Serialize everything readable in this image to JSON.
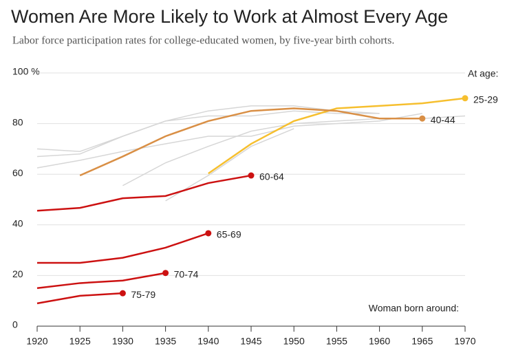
{
  "chart_data": {
    "type": "line",
    "title": "Women Are More Likely to Work at Almost Every Age",
    "subtitle": "Labor force participation rates for college-educated women, by five-year birth cohorts.",
    "annotations": [
      "At age:",
      "Woman born around:"
    ],
    "x": [
      1920,
      1925,
      1930,
      1935,
      1940,
      1945,
      1950,
      1955,
      1960,
      1965,
      1970
    ],
    "xlim": [
      1920,
      1970
    ],
    "xticks": [
      1920,
      1925,
      1930,
      1935,
      1940,
      1945,
      1950,
      1955,
      1960,
      1965,
      1970
    ],
    "ylim": [
      0,
      100
    ],
    "yticks": [
      0,
      20,
      40,
      60,
      80,
      {
        "value": 100,
        "label": "100 %"
      }
    ],
    "grid": true,
    "series": [
      {
        "color": "#d6d6d6",
        "values": [
          70,
          69,
          75,
          81,
          85,
          87,
          87,
          85,
          84,
          null,
          null
        ]
      },
      {
        "color": "#d6d6d6",
        "values": [
          67,
          68,
          75,
          81,
          83,
          83,
          85,
          84,
          84,
          null,
          null
        ]
      },
      {
        "color": "#d6d6d6",
        "values": [
          62.5,
          65.5,
          69,
          72,
          75,
          75,
          79,
          80,
          81,
          84,
          null
        ]
      },
      {
        "color": "#d6d6d6",
        "values": [
          null,
          null,
          55.5,
          64.5,
          71,
          77,
          80,
          81,
          82,
          82,
          83
        ]
      },
      {
        "color": "#d6d6d6",
        "values": [
          null,
          null,
          null,
          49.5,
          59.5,
          71,
          78,
          null,
          null,
          null,
          null
        ]
      },
      {
        "name": "25-29",
        "color": "#f6bf2e",
        "values": [
          null,
          null,
          null,
          null,
          60.3,
          72,
          81,
          86,
          87,
          88,
          90
        ]
      },
      {
        "name": "40-44",
        "color": "#d98f45",
        "values": [
          null,
          59.5,
          67,
          75,
          81,
          85,
          86,
          85,
          82,
          82,
          null
        ]
      },
      {
        "name": "60-64",
        "color": "#cc1111",
        "values": [
          45.6,
          46.7,
          50.5,
          51.4,
          56.5,
          59.5,
          null,
          null,
          null,
          null,
          null
        ]
      },
      {
        "name": "65-69",
        "color": "#cc1111",
        "values": [
          25,
          25,
          27,
          31,
          36.7,
          null,
          null,
          null,
          null,
          null,
          null
        ]
      },
      {
        "name": "70-74",
        "color": "#cc1111",
        "values": [
          15,
          17,
          18,
          21,
          null,
          null,
          null,
          null,
          null,
          null,
          null
        ]
      },
      {
        "name": "75-79",
        "color": "#cc1111",
        "values": [
          9,
          12,
          13,
          null,
          null,
          null,
          null,
          null,
          null,
          null,
          null
        ]
      }
    ]
  }
}
